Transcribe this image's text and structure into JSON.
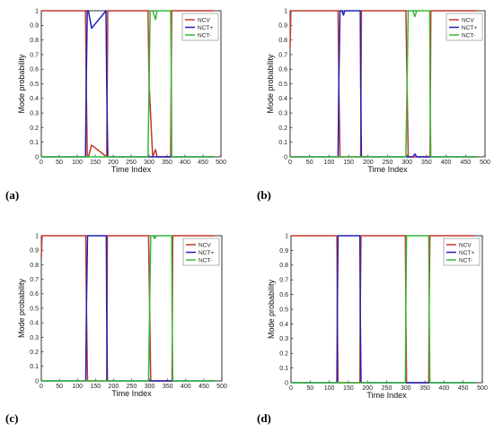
{
  "colors": {
    "NCV": "#c0392b",
    "NCT+": "#2020b8",
    "NCT-": "#36b836",
    "axis": "#000000",
    "tick": "#333333"
  },
  "chart_data": [
    {
      "type": "line",
      "panel_label": "(a)",
      "xlabel": "Time Index",
      "ylabel": "Mode probability",
      "xlim": [
        0,
        500
      ],
      "ylim": [
        0,
        1
      ],
      "xticks": [
        0,
        50,
        100,
        150,
        200,
        250,
        300,
        350,
        400,
        450,
        500
      ],
      "yticks": [
        0,
        0.1,
        0.2,
        0.3,
        0.4,
        0.5,
        0.6,
        0.7,
        0.8,
        0.9,
        1
      ],
      "legend": "top-right",
      "series": [
        {
          "name": "NCV",
          "x": [
            0,
            123,
            125,
            128,
            131,
            140,
            182,
            185,
            297,
            300,
            310,
            318,
            322,
            360,
            363,
            480
          ],
          "y": [
            1,
            1,
            0.5,
            0,
            0,
            0.08,
            0,
            1,
            1,
            0.5,
            0,
            0.05,
            0,
            0,
            1,
            1
          ]
        },
        {
          "name": "NCT+",
          "x": [
            0,
            123,
            125,
            128,
            131,
            140,
            180,
            182,
            185,
            480
          ],
          "y": [
            0,
            0,
            0.5,
            1,
            1,
            0.88,
            1,
            0.5,
            0,
            0
          ]
        },
        {
          "name": "NCT-",
          "x": [
            0,
            297,
            300,
            303,
            310,
            318,
            322,
            360,
            362,
            363,
            480
          ],
          "y": [
            0,
            0,
            0.5,
            1,
            1,
            0.94,
            1,
            1,
            0.5,
            0,
            0
          ]
        }
      ]
    },
    {
      "type": "line",
      "panel_label": "(b)",
      "xlabel": "Time Index",
      "ylabel": "Mode probability",
      "xlim": [
        0,
        500
      ],
      "ylim": [
        0,
        1
      ],
      "xticks": [
        0,
        50,
        100,
        150,
        200,
        250,
        300,
        350,
        400,
        450,
        500
      ],
      "yticks": [
        0,
        0.1,
        0.2,
        0.3,
        0.4,
        0.5,
        0.6,
        0.7,
        0.8,
        0.9,
        1
      ],
      "legend": "top-right",
      "series": [
        {
          "name": "NCV",
          "x": [
            0,
            2,
            5,
            123,
            125,
            128,
            181,
            183,
            297,
            300,
            303,
            359,
            361,
            480
          ],
          "y": [
            0.75,
            1,
            1,
            1,
            0.5,
            0,
            0,
            1,
            1,
            0.5,
            0,
            0,
            1,
            1
          ]
        },
        {
          "name": "NCT+",
          "x": [
            0,
            123,
            125,
            128,
            133,
            137,
            140,
            180,
            181,
            183,
            315,
            320,
            325,
            480
          ],
          "y": [
            0,
            0,
            0.5,
            1,
            1,
            0.97,
            1,
            1,
            0.5,
            0,
            0,
            0.02,
            0,
            0
          ]
        },
        {
          "name": "NCT-",
          "x": [
            0,
            297,
            300,
            303,
            315,
            320,
            325,
            358,
            359,
            361,
            480
          ],
          "y": [
            0,
            0,
            0.5,
            1,
            1,
            0.96,
            1,
            1,
            0.5,
            0,
            0
          ]
        }
      ]
    },
    {
      "type": "line",
      "panel_label": "(c)",
      "xlabel": "Time Index",
      "ylabel": "Mode probability",
      "xlim": [
        0,
        500
      ],
      "ylim": [
        0,
        1
      ],
      "xticks": [
        0,
        50,
        100,
        150,
        200,
        250,
        300,
        350,
        400,
        450,
        500
      ],
      "yticks": [
        0,
        0.1,
        0.2,
        0.3,
        0.4,
        0.5,
        0.6,
        0.7,
        0.8,
        0.9,
        1
      ],
      "legend": "top-right",
      "series": [
        {
          "name": "NCV",
          "x": [
            0,
            2,
            5,
            123,
            125,
            128,
            181,
            183,
            297,
            300,
            303,
            362,
            364,
            480
          ],
          "y": [
            0.85,
            1,
            1,
            1,
            0.5,
            0,
            0,
            1,
            1,
            0.5,
            0,
            0,
            1,
            1
          ]
        },
        {
          "name": "NCT+",
          "x": [
            0,
            123,
            125,
            128,
            180,
            181,
            183,
            480
          ],
          "y": [
            0,
            0,
            0.5,
            1,
            1,
            0.5,
            0,
            0
          ]
        },
        {
          "name": "NCT-",
          "x": [
            0,
            297,
            300,
            303,
            310,
            314,
            318,
            361,
            362,
            364,
            480
          ],
          "y": [
            0,
            0,
            0.5,
            1,
            1,
            0.98,
            1,
            1,
            0.5,
            0,
            0
          ]
        }
      ]
    },
    {
      "type": "line",
      "panel_label": "(d)",
      "xlabel": "Time Index",
      "ylabel": "Mode probability",
      "xlim": [
        0,
        500
      ],
      "ylim": [
        0,
        1
      ],
      "xticks": [
        0,
        50,
        100,
        150,
        200,
        250,
        300,
        350,
        400,
        450,
        500
      ],
      "yticks": [
        0,
        0.1,
        0.2,
        0.3,
        0.4,
        0.5,
        0.6,
        0.7,
        0.8,
        0.9,
        1
      ],
      "legend": "top-right",
      "series": [
        {
          "name": "NCV",
          "x": [
            0,
            120,
            121,
            123,
            180,
            181,
            183,
            299,
            300,
            302,
            360,
            361,
            363,
            480
          ],
          "y": [
            1,
            1,
            0.5,
            0,
            0,
            0.5,
            1,
            1,
            0.5,
            0,
            0,
            0.5,
            1,
            1
          ]
        },
        {
          "name": "NCT+",
          "x": [
            0,
            120,
            121,
            123,
            180,
            181,
            183,
            480
          ],
          "y": [
            0,
            0,
            0.5,
            1,
            1,
            0.5,
            0,
            0
          ]
        },
        {
          "name": "NCT-",
          "x": [
            0,
            299,
            300,
            302,
            360,
            361,
            363,
            480
          ],
          "y": [
            0,
            0,
            0.5,
            1,
            1,
            0.5,
            0,
            0
          ]
        }
      ]
    }
  ]
}
